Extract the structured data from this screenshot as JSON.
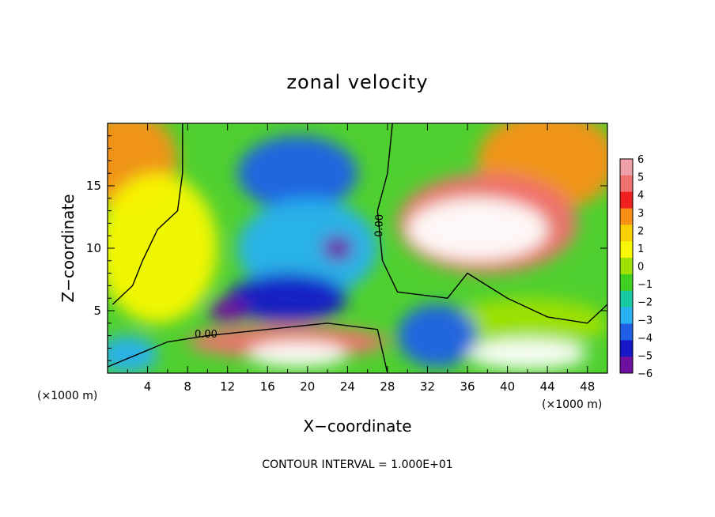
{
  "chart_data": {
    "type": "heatmap",
    "title": "zonal velocity",
    "xlabel": "X−coordinate",
    "ylabel": "Z−coordinate",
    "x_unit": "(×1000 m)",
    "z_unit": "(×1000 m)",
    "xlim": [
      0,
      50
    ],
    "ylim": [
      0,
      20
    ],
    "x_ticks": [
      "4",
      "8",
      "12",
      "16",
      "20",
      "24",
      "28",
      "32",
      "36",
      "40",
      "44",
      "48"
    ],
    "y_ticks": [
      "5",
      "10",
      "15"
    ],
    "contour_interval_text": "CONTOUR INTERVAL =  1.000E+01",
    "contour_labels": [
      "0.00",
      "0.00"
    ],
    "colorbar": {
      "ticks": [
        "6",
        "5",
        "4",
        "3",
        "2",
        "1",
        "0",
        "−1",
        "−2",
        "−3",
        "−4",
        "−5",
        "−6"
      ],
      "colors": [
        "#f0a0a8",
        "#f07070",
        "#f02020",
        "#f89018",
        "#f8d000",
        "#f8f800",
        "#a0e000",
        "#40d020",
        "#18c8a0",
        "#28b0f0",
        "#2060e8",
        "#1818c8",
        "#7010a0"
      ]
    },
    "regions": [
      {
        "name": "upper-left-orange",
        "cx": 2,
        "cz": 17,
        "rx": 5,
        "rz": 4,
        "value": 3
      },
      {
        "name": "left-green-band",
        "cx": 5,
        "cz": 10,
        "rx": 6,
        "rz": 6,
        "value": 1
      },
      {
        "name": "upper-blue-core",
        "cx": 19,
        "cz": 16,
        "rx": 6,
        "rz": 3,
        "value": -4
      },
      {
        "name": "mid-blue",
        "cx": 20,
        "cz": 10,
        "rx": 7,
        "rz": 4,
        "value": -3
      },
      {
        "name": "deep-blue-jet",
        "cx": 18,
        "cz": 6,
        "rx": 6,
        "rz": 2,
        "value": -5
      },
      {
        "name": "purple-core-a",
        "cx": 12,
        "cz": 5,
        "rx": 2,
        "rz": 1,
        "value": -6
      },
      {
        "name": "purple-core-b",
        "cx": 23,
        "cz": 10,
        "rx": 1.5,
        "rz": 1,
        "value": -6
      },
      {
        "name": "upper-right-orange",
        "cx": 44,
        "cz": 17,
        "rx": 7,
        "rz": 4,
        "value": 3
      },
      {
        "name": "right-red-jet",
        "cx": 38,
        "cz": 12,
        "rx": 9,
        "rz": 4,
        "value": 5
      },
      {
        "name": "right-saturated-core",
        "cx": 37,
        "cz": 11.5,
        "rx": 7,
        "rz": 2.5,
        "value": 8
      },
      {
        "name": "lower-right-green",
        "cx": 42,
        "cz": 4,
        "rx": 8,
        "rz": 2,
        "value": 0
      },
      {
        "name": "lower-red-band",
        "cx": 18,
        "cz": 2.5,
        "rx": 10,
        "rz": 1.3,
        "value": 5
      },
      {
        "name": "lower-saturated-core",
        "cx": 19,
        "cz": 1.5,
        "rx": 5,
        "rz": 1,
        "value": 8
      },
      {
        "name": "lower-blue-right",
        "cx": 33,
        "cz": 3,
        "rx": 4,
        "rz": 2.5,
        "value": -4
      },
      {
        "name": "bottom-right-saturated",
        "cx": 42,
        "cz": 1.5,
        "rx": 6,
        "rz": 1.2,
        "value": 8
      },
      {
        "name": "bottom-left-blue",
        "cx": 2,
        "cz": 1.5,
        "rx": 3,
        "rz": 1.5,
        "value": -3
      }
    ],
    "zero_contours": [
      {
        "name": "left-zero-contour",
        "points": [
          [
            7.5,
            20
          ],
          [
            7.5,
            16
          ],
          [
            7,
            13
          ],
          [
            5,
            11.5
          ],
          [
            3.5,
            9
          ],
          [
            2.5,
            7
          ],
          [
            0.5,
            5.5
          ]
        ]
      },
      {
        "name": "center-zero-contour",
        "points": [
          [
            28.5,
            20
          ],
          [
            28,
            16
          ],
          [
            27,
            13
          ],
          [
            27.5,
            9
          ],
          [
            29,
            6.5
          ],
          [
            34,
            6
          ],
          [
            36,
            8
          ],
          [
            40,
            6
          ],
          [
            44,
            4.5
          ],
          [
            48,
            4
          ],
          [
            50,
            5.5
          ]
        ]
      },
      {
        "name": "lower-zero-contour",
        "points": [
          [
            0,
            0.5
          ],
          [
            3,
            1.5
          ],
          [
            6,
            2.5
          ],
          [
            10,
            3
          ],
          [
            16,
            3.5
          ],
          [
            22,
            4
          ],
          [
            27,
            3.5
          ],
          [
            28,
            0
          ]
        ]
      }
    ],
    "grid": false,
    "legend": "right-colorbar"
  }
}
